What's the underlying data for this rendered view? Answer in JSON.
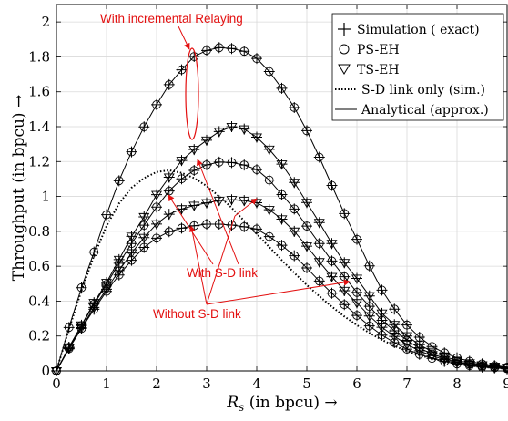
{
  "chart_data": {
    "type": "line",
    "xlabel": "R_s (in bpcu) →",
    "xlabel_main": "R",
    "xlabel_sub": "s",
    "xlabel_rest": " (in bpcu) →",
    "ylabel": "Throughput (in bpcu) →",
    "xlim": [
      0,
      9
    ],
    "ylim": [
      0,
      2.1
    ],
    "xticks": [
      0,
      1,
      2,
      3,
      4,
      5,
      6,
      7,
      8,
      9
    ],
    "yticks": [
      0,
      0.2,
      0.4,
      0.6,
      0.8,
      1,
      1.2,
      1.4,
      1.6,
      1.8,
      2
    ],
    "xtick_labels": [
      "0",
      "1",
      "2",
      "3",
      "4",
      "5",
      "6",
      "7",
      "8",
      "9"
    ],
    "ytick_labels": [
      "0",
      "0.2",
      "0.4",
      "0.6",
      "0.8",
      "1",
      "1.2",
      "1.4",
      "1.6",
      "1.8",
      "2"
    ],
    "grid": true,
    "legend_position": "top-right",
    "legend": [
      {
        "label": "Simulation ( exact)",
        "marker": "plus",
        "line": "none"
      },
      {
        "label": "PS-EH",
        "marker": "circle",
        "line": "none"
      },
      {
        "label": "TS-EH",
        "marker": "triangle-down",
        "line": "none"
      },
      {
        "label": "S-D link only (sim.)",
        "marker": "none",
        "line": "dotted"
      },
      {
        "label": "Analytical (approx.)",
        "marker": "none",
        "line": "solid"
      }
    ],
    "annotations": [
      {
        "text": "With incremental Relaying",
        "color": "#e31010"
      },
      {
        "text": "With S-D link",
        "color": "#e31010"
      },
      {
        "text": "Without S-D link",
        "color": "#e31010"
      }
    ],
    "x": [
      0,
      0.25,
      0.5,
      0.75,
      1,
      1.25,
      1.5,
      1.75,
      2,
      2.25,
      2.5,
      2.75,
      3,
      3.25,
      3.5,
      3.75,
      4,
      4.25,
      4.5,
      4.75,
      5,
      5.25,
      5.5,
      5.75,
      6,
      6.25,
      6.5,
      6.75,
      7,
      7.25,
      7.5,
      7.75,
      8,
      8.25,
      8.5,
      8.75,
      9
    ],
    "series": [
      {
        "group": "incremental",
        "marker": "circle",
        "values": [
          0,
          0.249,
          0.477,
          0.681,
          0.895,
          1.09,
          1.256,
          1.399,
          1.526,
          1.641,
          1.726,
          1.802,
          1.837,
          1.853,
          1.848,
          1.832,
          1.791,
          1.716,
          1.62,
          1.51,
          1.377,
          1.225,
          1.063,
          0.902,
          0.754,
          0.602,
          0.463,
          0.354,
          0.263,
          0.193,
          0.14,
          0.103,
          0.075,
          0.055,
          0.04,
          0.03,
          0.022
        ]
      },
      {
        "group": "sd-link",
        "marker": "triangle-down",
        "values": [
          0,
          0.135,
          0.262,
          0.391,
          0.506,
          0.638,
          0.771,
          0.883,
          1.01,
          1.11,
          1.206,
          1.269,
          1.322,
          1.372,
          1.4,
          1.386,
          1.34,
          1.27,
          1.185,
          1.08,
          0.965,
          0.85,
          0.73,
          0.62,
          0.53,
          0.43,
          0.33,
          0.265,
          0.2,
          0.15,
          0.111,
          0.082,
          0.06,
          0.045,
          0.034,
          0.026,
          0.02
        ]
      },
      {
        "group": "sd-link",
        "marker": "circle",
        "values": [
          0,
          0.135,
          0.26,
          0.383,
          0.496,
          0.617,
          0.73,
          0.835,
          0.939,
          1.031,
          1.101,
          1.149,
          1.181,
          1.197,
          1.194,
          1.18,
          1.154,
          1.094,
          1.011,
          0.928,
          0.83,
          0.73,
          0.63,
          0.54,
          0.45,
          0.37,
          0.29,
          0.23,
          0.175,
          0.13,
          0.098,
          0.072,
          0.052,
          0.038,
          0.028,
          0.021,
          0.016
        ]
      },
      {
        "group": "without-sd",
        "marker": "triangle-down",
        "values": [
          0,
          0.129,
          0.248,
          0.364,
          0.468,
          0.575,
          0.676,
          0.764,
          0.842,
          0.898,
          0.928,
          0.948,
          0.963,
          0.976,
          0.981,
          0.976,
          0.964,
          0.924,
          0.87,
          0.8,
          0.715,
          0.625,
          0.54,
          0.46,
          0.39,
          0.315,
          0.25,
          0.198,
          0.152,
          0.115,
          0.087,
          0.065,
          0.048,
          0.036,
          0.027,
          0.02,
          0.015
        ]
      },
      {
        "group": "without-sd",
        "marker": "circle",
        "values": [
          0,
          0.127,
          0.243,
          0.353,
          0.456,
          0.55,
          0.634,
          0.708,
          0.761,
          0.798,
          0.818,
          0.832,
          0.841,
          0.841,
          0.836,
          0.826,
          0.813,
          0.77,
          0.72,
          0.66,
          0.59,
          0.515,
          0.445,
          0.38,
          0.318,
          0.258,
          0.205,
          0.162,
          0.125,
          0.095,
          0.072,
          0.054,
          0.04,
          0.03,
          0.022,
          0.017,
          0.012
        ]
      }
    ],
    "sd_link_only": {
      "line": "dotted",
      "x": [
        0,
        0.25,
        0.5,
        0.75,
        1,
        1.25,
        1.5,
        1.75,
        2,
        2.25,
        2.5,
        2.75,
        3,
        3.25,
        3.5,
        3.75,
        4,
        4.25,
        4.5,
        4.75,
        5,
        5.25,
        5.5,
        5.75,
        6,
        6.25,
        6.5,
        6.75,
        7,
        7.25,
        7.5,
        7.75,
        8,
        8.25,
        8.5,
        8.75,
        9
      ],
      "values": [
        0,
        0.24,
        0.46,
        0.66,
        0.83,
        0.96,
        1.05,
        1.105,
        1.14,
        1.15,
        1.135,
        1.105,
        1.06,
        1.0,
        0.935,
        0.86,
        0.785,
        0.71,
        0.635,
        0.562,
        0.492,
        0.428,
        0.368,
        0.312,
        0.262,
        0.218,
        0.178,
        0.143,
        0.114,
        0.09,
        0.07,
        0.054,
        0.041,
        0.031,
        0.023,
        0.017,
        0.013
      ]
    }
  }
}
